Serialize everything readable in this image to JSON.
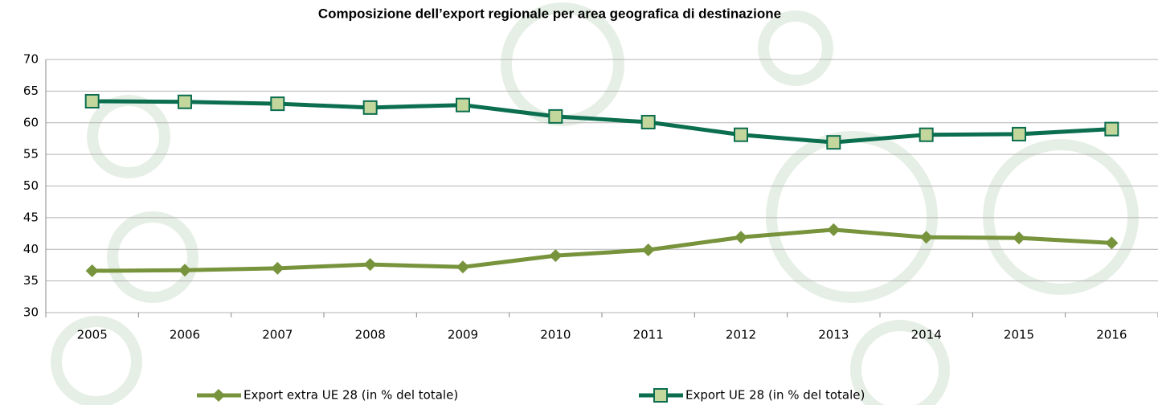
{
  "chart_data": {
    "type": "line",
    "title": "Composizione dell’export regionale per area geografica di destinazione",
    "categories": [
      "2005",
      "2006",
      "2007",
      "2008",
      "2009",
      "2010",
      "2011",
      "2012",
      "2013",
      "2014",
      "2015",
      "2016"
    ],
    "series": [
      {
        "name": "Export extra UE 28 (in % del totale)",
        "color": "#77933c",
        "marker": "diamond",
        "values": [
          36.6,
          36.7,
          37.0,
          37.6,
          37.2,
          39.0,
          39.9,
          41.9,
          43.1,
          41.9,
          41.8,
          41.0
        ]
      },
      {
        "name": "Export UE 28 (in % del totale)",
        "color": "#0b6e4f",
        "marker": "square",
        "values": [
          63.4,
          63.3,
          63.0,
          62.4,
          62.8,
          61.0,
          60.1,
          58.1,
          56.9,
          58.1,
          58.2,
          59.0
        ]
      }
    ],
    "ylim": [
      30,
      70
    ],
    "yticks": [
      30,
      35,
      40,
      45,
      50,
      55,
      60,
      65,
      70
    ],
    "grid": true
  }
}
